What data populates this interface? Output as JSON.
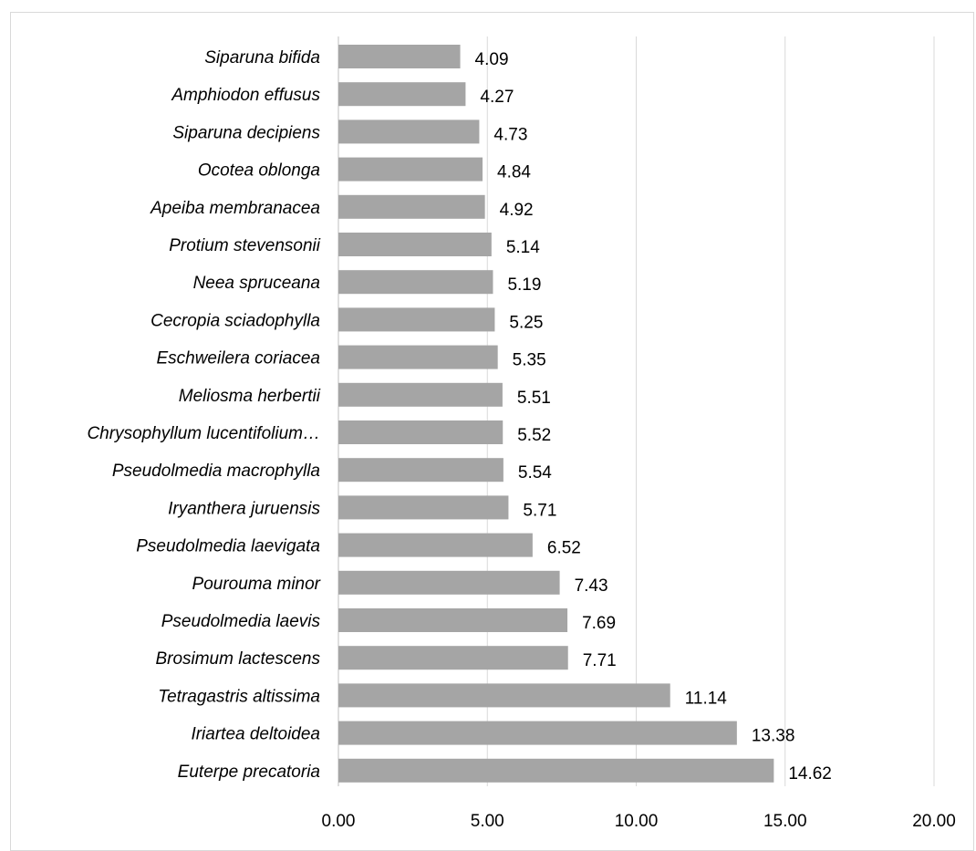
{
  "chart_data": {
    "type": "bar",
    "orientation": "horizontal",
    "categories": [
      "Siparuna bifida",
      "Amphiodon effusus",
      "Siparuna decipiens",
      "Ocotea oblonga",
      "Apeiba membranacea",
      "Protium stevensonii",
      "Neea spruceana",
      "Cecropia sciadophylla",
      "Eschweilera coriacea",
      "Meliosma herbertii",
      "Chrysophyllum lucentifolium…",
      "Pseudolmedia macrophylla",
      "Iryanthera juruensis",
      "Pseudolmedia laevigata",
      "Pourouma minor",
      "Pseudolmedia laevis",
      "Brosimum lactescens",
      "Tetragastris altissima",
      "Iriartea deltoidea",
      "Euterpe precatoria"
    ],
    "values": [
      4.09,
      4.27,
      4.73,
      4.84,
      4.92,
      5.14,
      5.19,
      5.25,
      5.35,
      5.51,
      5.52,
      5.54,
      5.71,
      6.52,
      7.43,
      7.69,
      7.71,
      11.14,
      13.38,
      14.62
    ],
    "value_labels": [
      "4.09",
      "4.27",
      "4.73",
      "4.84",
      "4.92",
      "5.14",
      "5.19",
      "5.25",
      "5.35",
      "5.51",
      "5.52",
      "5.54",
      "5.71",
      "6.52",
      "7.43",
      "7.69",
      "7.71",
      "11.14",
      "13.38",
      "14.62"
    ],
    "x_ticks": [
      "0.00",
      "5.00",
      "10.00",
      "15.00",
      "20.00"
    ],
    "xlim": [
      0,
      20
    ],
    "title": "",
    "xlabel": "",
    "ylabel": "",
    "grid": "vertical",
    "legend": "none",
    "colors": {
      "bar": "#a5a5a5",
      "grid": "#d9d9d9",
      "axis": "#bfbfbf"
    }
  }
}
